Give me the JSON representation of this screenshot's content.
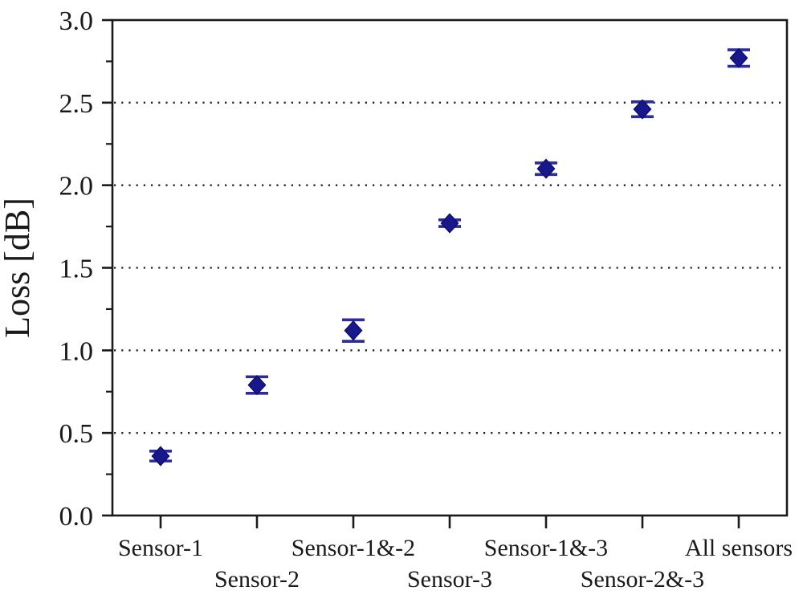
{
  "chart_data": {
    "type": "scatter",
    "title": "",
    "xlabel": "",
    "ylabel": "Loss [dB]",
    "legend": "none",
    "marker": "diamond-with-error-bars",
    "categories": [
      "Sensor-1",
      "Sensor-2",
      "Sensor-1&-2",
      "Sensor-3",
      "Sensor-1&-3",
      "Sensor-2&-3",
      "All sensors"
    ],
    "values": [
      0.36,
      0.79,
      1.12,
      1.77,
      2.1,
      2.46,
      2.77
    ],
    "errors": [
      0.03,
      0.05,
      0.065,
      0.02,
      0.035,
      0.045,
      0.05
    ],
    "x_label_rows": [
      0,
      1,
      0,
      1,
      0,
      1,
      0
    ],
    "ylim": [
      0.0,
      3.0
    ],
    "ytick_step": 0.5,
    "ytick_minor_step": 0.25,
    "ytick_labels": [
      "0.0",
      "0.5",
      "1.0",
      "1.5",
      "2.0",
      "2.5",
      "3.0"
    ],
    "grid": "horizontal dotted lines at interior major ticks",
    "colors": {
      "marker_fill": "#18188c",
      "marker_stroke": "#0f0f70",
      "error_bar": "#2c2c9c",
      "frame": "#1a1a1a",
      "grid": "#222222",
      "text": "#1a1a1a",
      "background": "#ffffff"
    }
  }
}
